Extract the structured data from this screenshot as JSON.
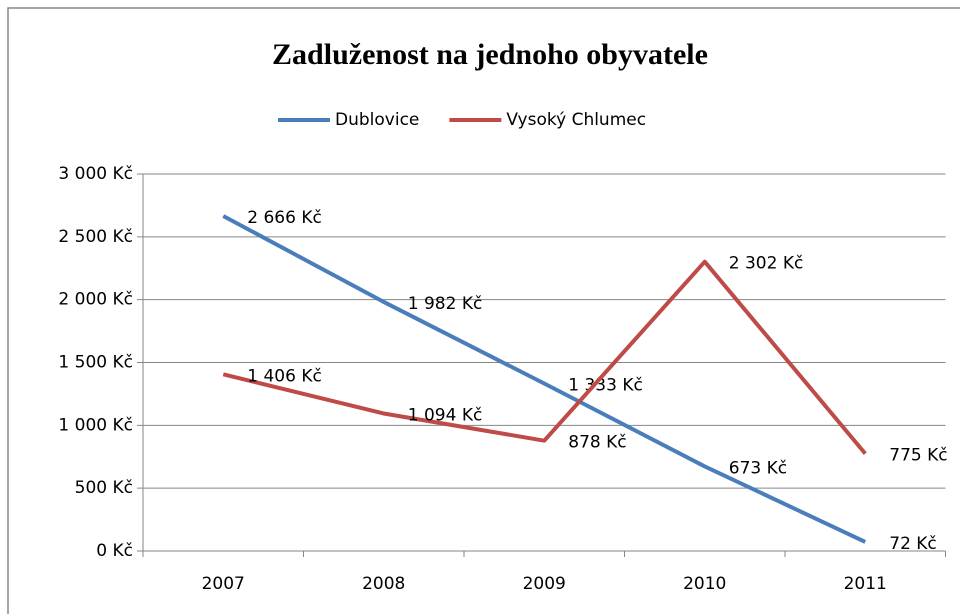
{
  "chart_data": {
    "type": "line",
    "title": "Zadluženost na jednoho obyvatele",
    "categories": [
      "2007",
      "2008",
      "2009",
      "2010",
      "2011"
    ],
    "series": [
      {
        "name": "Dublovice",
        "color": "#4a7ebb",
        "values": [
          2666,
          1982,
          1333,
          673,
          72
        ],
        "value_labels": [
          "2 666 Kč",
          "1 982 Kč",
          "1 333 Kč",
          "673 Kč",
          "72 Kč"
        ]
      },
      {
        "name": "Vysoký Chlumec",
        "color": "#be4b48",
        "values": [
          1406,
          1094,
          878,
          2302,
          775
        ],
        "value_labels": [
          "1 406 Kč",
          "1 094 Kč",
          "878 Kč",
          "2 302 Kč",
          "775 Kč"
        ]
      }
    ],
    "ylim": [
      0,
      3000
    ],
    "yticks": [
      {
        "value": 0,
        "label": "0 Kč"
      },
      {
        "value": 500,
        "label": "500 Kč"
      },
      {
        "value": 1000,
        "label": "1 000 Kč"
      },
      {
        "value": 1500,
        "label": "1 500 Kč"
      },
      {
        "value": 2000,
        "label": "2 000 Kč"
      },
      {
        "value": 2500,
        "label": "2 500 Kč"
      },
      {
        "value": 3000,
        "label": "3 000 Kč"
      }
    ],
    "grid": true,
    "legend": "top"
  }
}
